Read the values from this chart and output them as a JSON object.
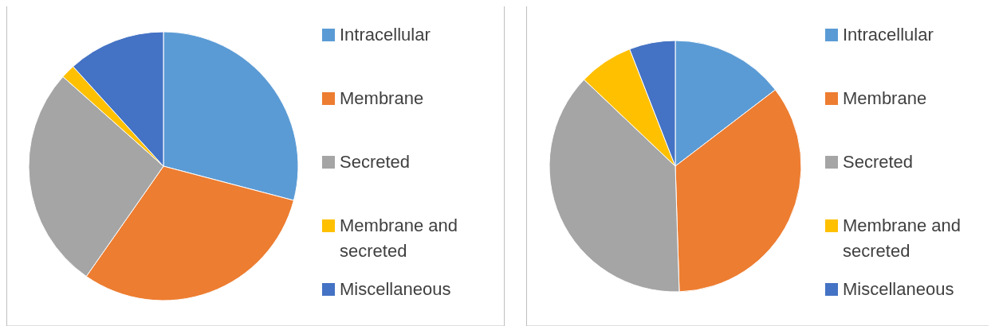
{
  "chart_data": [
    {
      "type": "pie",
      "categories": [
        "Intracellular",
        "Membrane",
        "Secreted",
        "Membrane and secreted",
        "Miscellaneous"
      ],
      "values": [
        29.1,
        30.6,
        26.9,
        1.7,
        11.7
      ],
      "colors": [
        "#5b9bd5",
        "#ed7d31",
        "#a5a5a5",
        "#ffc000",
        "#4472c4"
      ],
      "legend": "right"
    },
    {
      "type": "pie",
      "categories": [
        "Intracellular",
        "Membrane",
        "Secreted",
        "Membrane and secreted",
        "Miscellaneous"
      ],
      "values": [
        14.6,
        34.9,
        37.6,
        7.0,
        5.9
      ],
      "colors": [
        "#5b9bd5",
        "#ed7d31",
        "#a5a5a5",
        "#ffc000",
        "#4472c4"
      ],
      "legend": "right"
    }
  ]
}
